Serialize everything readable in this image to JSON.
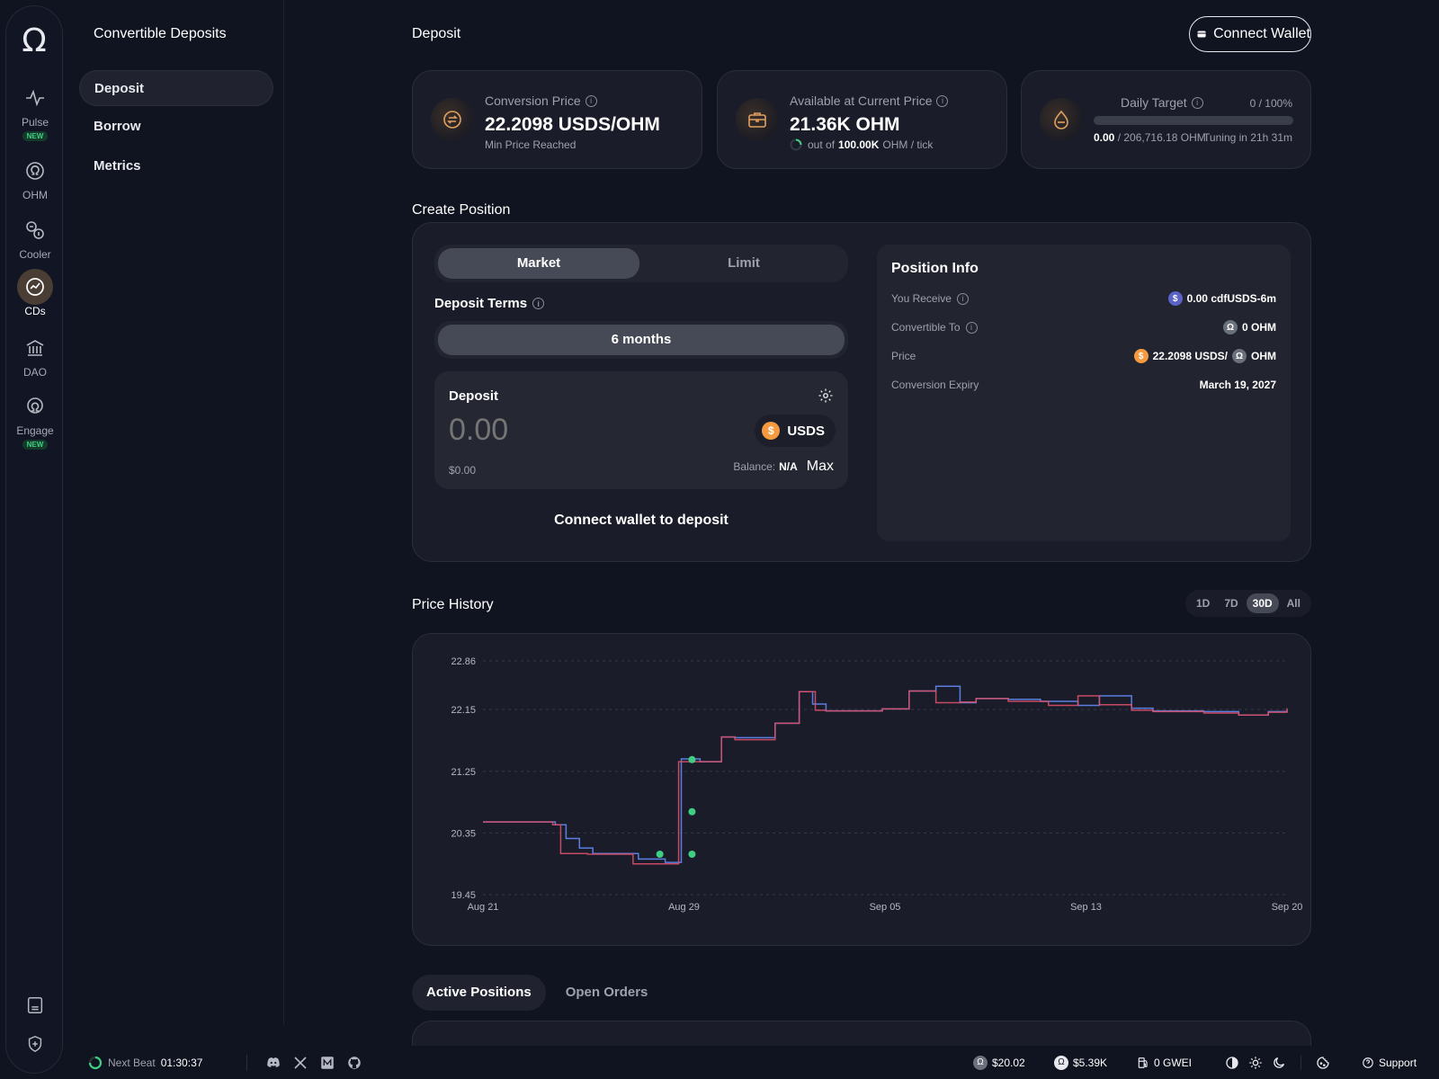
{
  "app": {
    "logo_glyph": "Ω"
  },
  "rail": {
    "items": [
      {
        "label": "Pulse",
        "badge": "NEW"
      },
      {
        "label": "OHM"
      },
      {
        "label": "Cooler"
      },
      {
        "label": "CDs"
      },
      {
        "label": "DAO"
      },
      {
        "label": "Engage",
        "badge": "NEW"
      }
    ]
  },
  "subnav": {
    "title": "Convertible Deposits",
    "items": [
      {
        "label": "Deposit"
      },
      {
        "label": "Borrow"
      },
      {
        "label": "Metrics"
      }
    ]
  },
  "header": {
    "title": "Deposit",
    "connect_label": "Connect Wallet"
  },
  "stats": {
    "conversion": {
      "label": "Conversion Price",
      "value": "22.2098 USDS/OHM",
      "sub": "Min Price Reached"
    },
    "available": {
      "label": "Available at Current Price",
      "value": "21.36K OHM",
      "sub_pre": "out of",
      "sub_bold": "100.00K",
      "sub_post": "OHM / tick"
    },
    "daily": {
      "label": "Daily Target",
      "percent": "0 / 100%",
      "progress": 0,
      "amount_bold": "0.00",
      "amount_rest": "/ 206,716.18 OHM",
      "tuning": "Tuning in 21h 31m"
    }
  },
  "create": {
    "title": "Create Position",
    "tabs": [
      {
        "label": "Market"
      },
      {
        "label": "Limit"
      }
    ],
    "terms_label": "Deposit Terms",
    "term_option": "6 months",
    "deposit_label": "Deposit",
    "amount_placeholder": "0.00",
    "token": "USDS",
    "usd_value": "$0.00",
    "balance_label": "Balance:",
    "balance_value": "N/A",
    "max_label": "Max",
    "connect_label": "Connect wallet to deposit"
  },
  "position_info": {
    "title": "Position Info",
    "rows": [
      {
        "label": "You Receive",
        "value": "0.00 cdfUSDS-6m"
      },
      {
        "label": "Convertible To",
        "value": "0 OHM"
      },
      {
        "label": "Price",
        "value_a": "22.2098 USDS/",
        "value_b": "OHM"
      },
      {
        "label": "Conversion Expiry",
        "value": "March 19, 2027"
      }
    ]
  },
  "price_history": {
    "title": "Price History",
    "ranges": [
      "1D",
      "7D",
      "30D",
      "All"
    ],
    "active_range": "30D"
  },
  "chart_data": {
    "type": "line",
    "title": "Price History",
    "x_ticks": [
      "Aug 21",
      "Aug 29",
      "Sep 05",
      "Sep 13",
      "Sep 20"
    ],
    "y_ticks": [
      19.45,
      20.35,
      21.25,
      22.15,
      22.86
    ],
    "ylim": [
      19.45,
      22.86
    ],
    "x_range_days": [
      0,
      30
    ],
    "step": true,
    "grid": true,
    "series": [
      {
        "color": "#5b7fe0",
        "points": [
          [
            0,
            20.51
          ],
          [
            1.1,
            20.51
          ],
          [
            2.7,
            20.47
          ],
          [
            3.1,
            20.27
          ],
          [
            3.6,
            20.13
          ],
          [
            4.1,
            20.05
          ],
          [
            4.9,
            20.05
          ],
          [
            5.8,
            19.97
          ],
          [
            6.8,
            19.92
          ],
          [
            7.4,
            21.43
          ],
          [
            8.1,
            21.39
          ],
          [
            8.9,
            21.75
          ],
          [
            9.4,
            21.74
          ],
          [
            10.9,
            21.95
          ],
          [
            11.8,
            22.41
          ],
          [
            12.3,
            22.23
          ],
          [
            12.8,
            22.13
          ],
          [
            14.9,
            22.16
          ],
          [
            15.9,
            22.42
          ],
          [
            16.9,
            22.49
          ],
          [
            17.8,
            22.25
          ],
          [
            18.4,
            22.31
          ],
          [
            19.6,
            22.3
          ],
          [
            20.8,
            22.27
          ],
          [
            22.2,
            22.21
          ],
          [
            23.0,
            22.35
          ],
          [
            24.2,
            22.17
          ],
          [
            25.0,
            22.13
          ],
          [
            26.9,
            22.12
          ],
          [
            28.2,
            22.07
          ],
          [
            29.3,
            22.12
          ],
          [
            30.0,
            22.15
          ]
        ]
      },
      {
        "color": "#d9506a",
        "points": [
          [
            0,
            20.51
          ],
          [
            1.1,
            20.51
          ],
          [
            2.6,
            20.47
          ],
          [
            2.9,
            20.05
          ],
          [
            3.9,
            20.04
          ],
          [
            4.9,
            20.04
          ],
          [
            5.6,
            19.9
          ],
          [
            6.8,
            19.9
          ],
          [
            7.3,
            21.39
          ],
          [
            8.1,
            21.39
          ],
          [
            8.9,
            21.75
          ],
          [
            9.4,
            21.71
          ],
          [
            10.9,
            21.95
          ],
          [
            11.8,
            22.41
          ],
          [
            12.4,
            22.14
          ],
          [
            12.8,
            22.13
          ],
          [
            14.9,
            22.16
          ],
          [
            15.9,
            22.42
          ],
          [
            16.9,
            22.25
          ],
          [
            17.8,
            22.26
          ],
          [
            18.4,
            22.31
          ],
          [
            19.6,
            22.27
          ],
          [
            21.1,
            22.21
          ],
          [
            22.2,
            22.35
          ],
          [
            23.0,
            22.22
          ],
          [
            24.2,
            22.14
          ],
          [
            25.0,
            22.12
          ],
          [
            26.9,
            22.1
          ],
          [
            28.2,
            22.07
          ],
          [
            29.3,
            22.11
          ],
          [
            30.0,
            22.17
          ]
        ]
      }
    ],
    "markers": [
      [
        6.6,
        20.04
      ],
      [
        7.8,
        20.04
      ],
      [
        7.8,
        20.66
      ],
      [
        7.8,
        21.42
      ]
    ]
  },
  "positions": {
    "tabs": [
      {
        "label": "Active Positions"
      },
      {
        "label": "Open Orders"
      }
    ]
  },
  "footer": {
    "beat_label": "Next Beat",
    "beat_time": "01:30:37",
    "ohm_price": "$20.02",
    "gohm_price": "$5.39K",
    "gas": "0 GWEI",
    "support": "Support"
  },
  "colors": {
    "accent": "#3fcf83",
    "line_blue": "#5b7fe0",
    "line_red": "#d9506a",
    "usds": "#f59a3e"
  }
}
